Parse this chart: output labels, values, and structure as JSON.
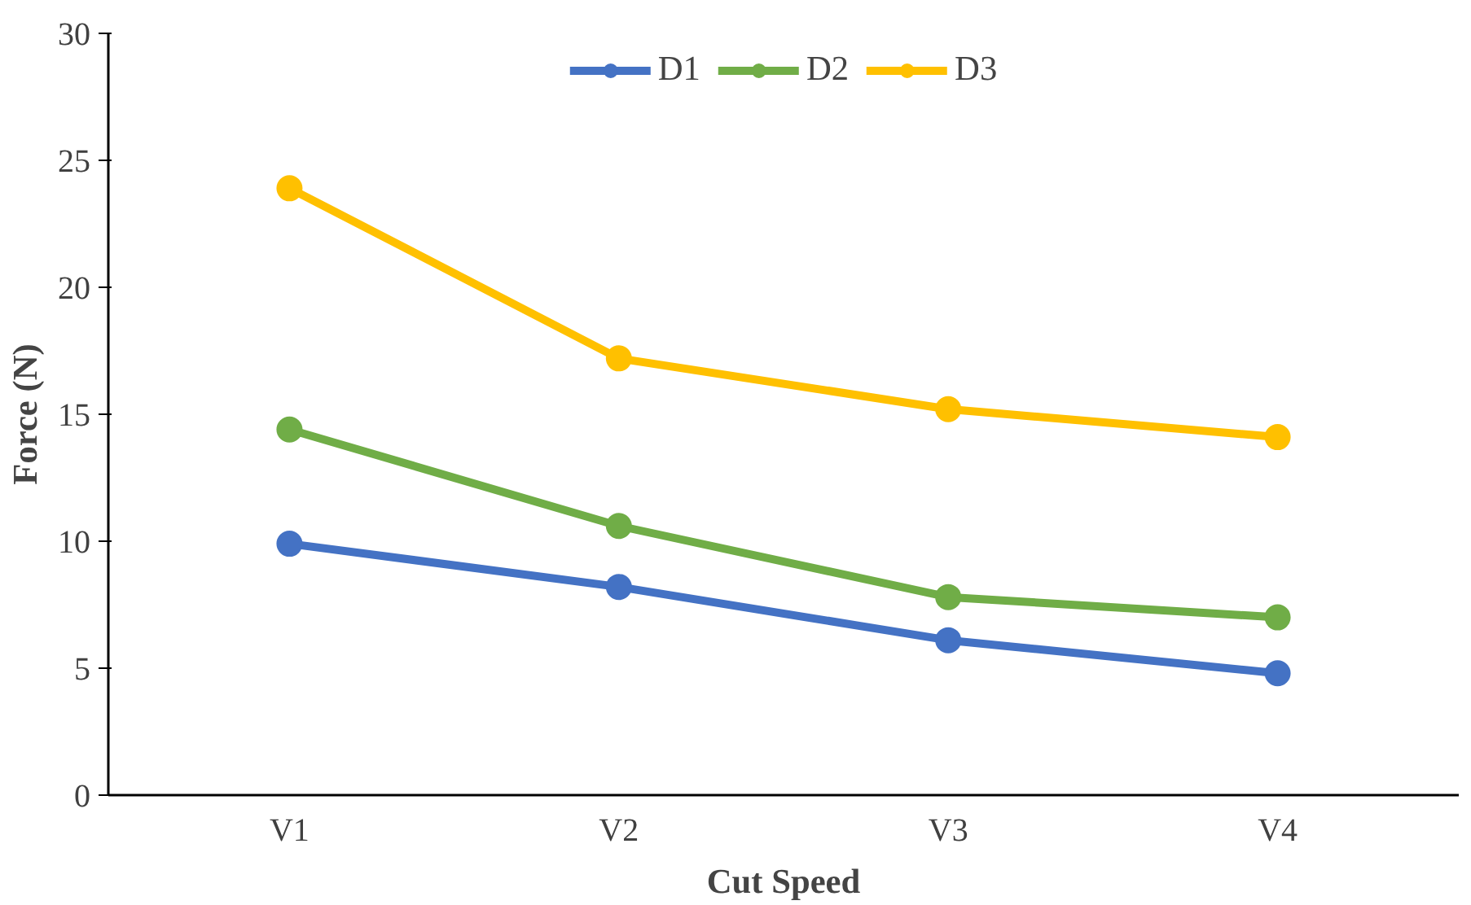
{
  "chart_data": {
    "type": "line",
    "xlabel": "Cut Speed",
    "ylabel": "Force (N)",
    "categories": [
      "V1",
      "V2",
      "V3",
      "V4"
    ],
    "series": [
      {
        "name": "D1",
        "color": "#4472c4",
        "values": [
          9.9,
          8.2,
          6.1,
          4.8
        ]
      },
      {
        "name": "D2",
        "color": "#70ad47",
        "values": [
          14.4,
          10.6,
          7.8,
          7.0
        ]
      },
      {
        "name": "D3",
        "color": "#ffc000",
        "values": [
          23.9,
          17.2,
          15.2,
          14.1
        ]
      }
    ],
    "ylim": [
      0,
      30
    ],
    "yticks": [
      0,
      5,
      10,
      15,
      20,
      25,
      30
    ],
    "grid": false,
    "legend": "top",
    "marker": "circle",
    "line_style": "solid"
  }
}
